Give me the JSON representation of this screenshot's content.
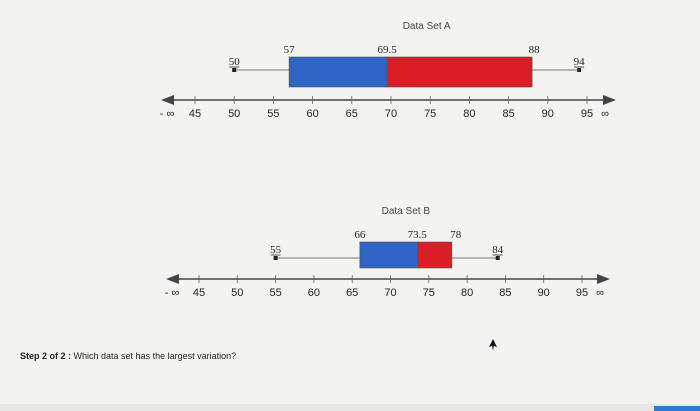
{
  "plots": [
    {
      "id": "A",
      "title": "Data Set A",
      "min": 50,
      "q1": 57,
      "median": 69.5,
      "q3": 88,
      "max": 94,
      "labels": {
        "min": "50",
        "q1": "57",
        "median": "69.5",
        "q3": "88",
        "max": "94"
      },
      "colors": {
        "lower": "#2f63c4",
        "upper": "#d81f26"
      }
    },
    {
      "id": "B",
      "title": "Data Set B",
      "min": 55,
      "q1": 66,
      "median": 73.5,
      "q3": 78,
      "max": 84,
      "labels": {
        "min": "55",
        "q1": "66",
        "median": "73.5",
        "q3": "78",
        "max": "84"
      },
      "colors": {
        "lower": "#2f63c4",
        "upper": "#d81f26"
      }
    }
  ],
  "axis": {
    "ticks": [
      45,
      50,
      55,
      60,
      65,
      70,
      75,
      80,
      85,
      90,
      95
    ],
    "neg_inf_label": "- ∞",
    "pos_inf_label": "∞"
  },
  "question": {
    "step": "Step 2 of 2 :",
    "text": "Which data set has the largest variation?"
  }
}
